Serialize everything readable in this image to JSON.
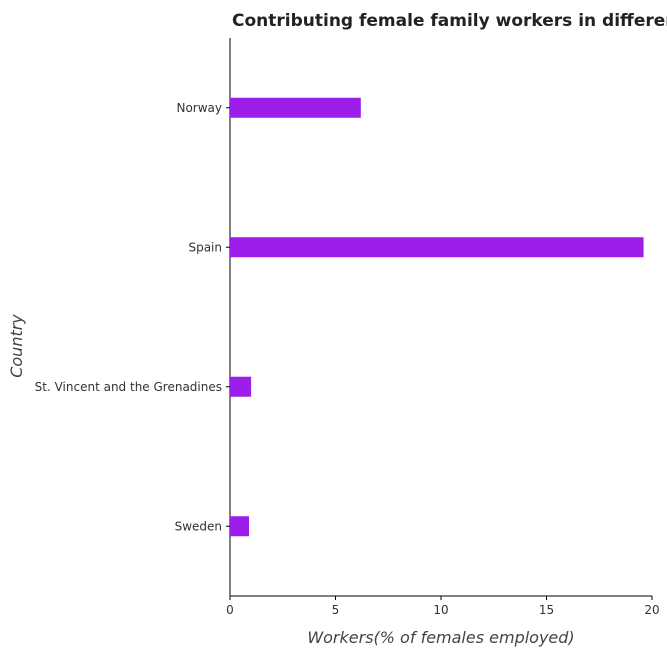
{
  "chart_data": {
    "type": "bar",
    "orientation": "horizontal",
    "title": "Contributing female family workers in different cou",
    "xlabel": "Workers(% of females employed)",
    "ylabel": "Country",
    "categories": [
      "Norway",
      "Spain",
      "St. Vincent and the Grenadines",
      "Sweden"
    ],
    "values": [
      6.2,
      19.6,
      1.0,
      0.9
    ],
    "xlim": [
      0,
      20
    ],
    "xticks": [
      0,
      5,
      10,
      15,
      20
    ],
    "xtick_labels": [
      "0",
      "5",
      "10",
      "15",
      "20"
    ],
    "bar_color": "#9b1fe8",
    "grid": false,
    "legend": "none"
  }
}
